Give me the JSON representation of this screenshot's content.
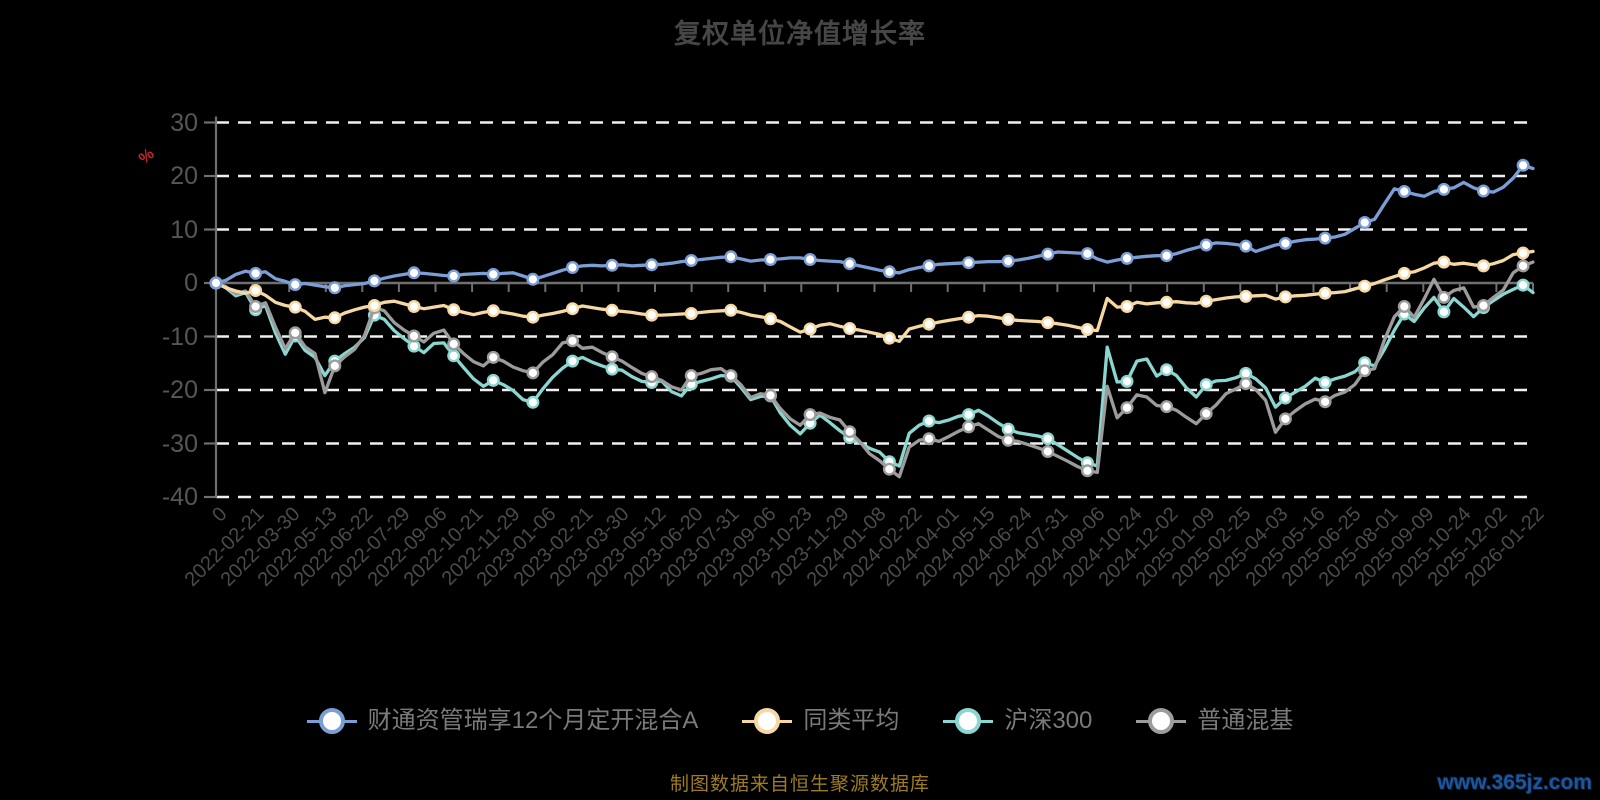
{
  "title": "复权单位净值增长率",
  "unit_label": "%",
  "source_note": "制图数据来自恒生聚源数据库",
  "watermark": "www.365jz.com",
  "colors": {
    "background": "#000000",
    "title": "#464646",
    "axis": "#6f6f6f",
    "grid": "#f0f0f0",
    "y_label": "#565656",
    "x_label": "#4b4b4b",
    "legend_text": "#7a7a7a",
    "percent": "#c3272b",
    "source": "#9d7c20",
    "watermark": "#1e5699"
  },
  "chart_data": {
    "type": "line",
    "title": "复权单位净值增长率",
    "ylabel": "%",
    "ylim": [
      -40,
      30
    ],
    "yticks": [
      30,
      20,
      10,
      0,
      -10,
      -20,
      -30,
      -40
    ],
    "grid": "dashed horizontal white lines, solid axis at 0",
    "legend_position": "bottom center",
    "marker_every": 4,
    "draw_order": [
      2,
      3,
      1,
      0
    ],
    "x_labels": [
      "0",
      "2022-02-21",
      "2022-03-30",
      "2022-05-13",
      "2022-06-22",
      "2022-07-29",
      "2022-09-06",
      "2022-10-21",
      "2022-11-29",
      "2023-01-06",
      "2023-02-21",
      "2023-03-30",
      "2023-05-12",
      "2023-06-20",
      "2023-07-31",
      "2023-09-06",
      "2023-10-23",
      "2023-11-29",
      "2024-01-08",
      "2024-02-22",
      "2024-04-01",
      "2024-05-15",
      "2024-06-24",
      "2024-07-31",
      "2024-09-06",
      "2024-10-24",
      "2024-12-02",
      "2025-01-09",
      "2025-02-25",
      "2025-04-03",
      "2025-05-16",
      "2025-06-25",
      "2025-08-01",
      "2025-09-09",
      "2025-10-24",
      "2025-12-02",
      "2026-01-22"
    ],
    "series": [
      {
        "name": "财通资管瑞享12个月定开混合A",
        "color": "#7c9ed6",
        "values": [
          0,
          0.5,
          1.6,
          2.2,
          1.8,
          2.1,
          0.8,
          0.3,
          -0.3,
          -0.1,
          -0.4,
          -0.7,
          -0.9,
          -0.5,
          -0.3,
          -0.1,
          0.4,
          0.9,
          1.3,
          1.6,
          1.9,
          1.8,
          1.6,
          1.4,
          1.3,
          1.6,
          1.7,
          1.8,
          1.6,
          1.8,
          1.9,
          1.3,
          0.7,
          1.2,
          1.8,
          2.4,
          2.9,
          3.2,
          3.3,
          3.2,
          3.3,
          3.4,
          3.2,
          3.3,
          3.4,
          3.5,
          3.7,
          4.0,
          4.2,
          4.4,
          4.6,
          4.8,
          4.9,
          4.5,
          4.1,
          4.3,
          4.4,
          4.5,
          4.7,
          4.7,
          4.4,
          4.2,
          4.1,
          4.0,
          3.6,
          3.2,
          2.8,
          2.4,
          2.1,
          1.9,
          2.5,
          2.9,
          3.2,
          3.5,
          3.6,
          3.7,
          3.8,
          3.9,
          4.0,
          4.0,
          4.1,
          4.3,
          4.6,
          5.0,
          5.4,
          5.8,
          5.7,
          5.6,
          5.5,
          4.5,
          3.9,
          4.3,
          4.6,
          4.8,
          5.0,
          5.1,
          5.1,
          5.5,
          6.1,
          6.6,
          7.1,
          7.5,
          7.4,
          7.2,
          6.9,
          5.9,
          6.5,
          7.1,
          7.4,
          7.8,
          8.1,
          8.2,
          8.4,
          8.6,
          9.1,
          10.2,
          11.3,
          11.9,
          14.8,
          17.6,
          17.1,
          16.6,
          16.2,
          17.1,
          17.5,
          17.8,
          18.8,
          17.8,
          17.2,
          17.0,
          17.9,
          19.6,
          22.0,
          21.4
        ]
      },
      {
        "name": "同类平均",
        "color": "#f6d8a2",
        "values": [
          0,
          -0.9,
          -1.5,
          -1.9,
          -1.4,
          -2.3,
          -3.6,
          -4.2,
          -4.5,
          -5.3,
          -6.8,
          -6.4,
          -6.5,
          -5.6,
          -5.0,
          -4.5,
          -4.2,
          -3.6,
          -3.4,
          -3.9,
          -4.4,
          -4.8,
          -4.5,
          -4.2,
          -5.0,
          -5.5,
          -5.9,
          -5.5,
          -5.2,
          -5.5,
          -5.8,
          -6.2,
          -6.4,
          -6.0,
          -5.7,
          -5.3,
          -4.8,
          -4.3,
          -4.6,
          -4.9,
          -5.1,
          -5.3,
          -5.5,
          -5.8,
          -6.0,
          -6.0,
          -5.9,
          -5.8,
          -5.7,
          -5.5,
          -5.3,
          -5.2,
          -5.1,
          -5.5,
          -6.0,
          -6.3,
          -6.7,
          -7.2,
          -8.2,
          -9.2,
          -8.6,
          -7.9,
          -7.6,
          -8.1,
          -8.5,
          -8.8,
          -9.2,
          -9.6,
          -10.3,
          -10.9,
          -8.6,
          -8.1,
          -7.7,
          -7.3,
          -7.0,
          -6.7,
          -6.4,
          -6.1,
          -6.2,
          -6.5,
          -6.8,
          -7.0,
          -7.1,
          -7.2,
          -7.4,
          -7.6,
          -7.9,
          -8.3,
          -8.7,
          -8.9,
          -2.9,
          -4.5,
          -4.4,
          -3.6,
          -3.9,
          -3.7,
          -3.6,
          -3.5,
          -3.7,
          -3.8,
          -3.4,
          -3.1,
          -2.8,
          -2.6,
          -2.5,
          -2.4,
          -2.3,
          -3.0,
          -2.6,
          -2.4,
          -2.3,
          -2.1,
          -1.9,
          -1.8,
          -1.6,
          -1.1,
          -0.6,
          -0.1,
          0.6,
          1.2,
          1.8,
          2.1,
          2.8,
          3.7,
          3.9,
          3.5,
          3.7,
          3.4,
          3.2,
          3.6,
          4.2,
          5.3,
          5.6,
          5.9
        ]
      },
      {
        "name": "沪深300",
        "color": "#8ad6d0",
        "values": [
          0,
          -0.9,
          -2.4,
          -1.8,
          -5.0,
          -4.2,
          -9.3,
          -13.3,
          -9.9,
          -12.6,
          -13.9,
          -17.3,
          -14.6,
          -13.2,
          -12.0,
          -10.2,
          -6.0,
          -6.8,
          -8.9,
          -10.4,
          -11.8,
          -13.0,
          -11.3,
          -11.2,
          -13.6,
          -15.8,
          -17.9,
          -19.3,
          -18.2,
          -19.0,
          -20.1,
          -21.8,
          -22.3,
          -19.8,
          -17.6,
          -15.9,
          -14.6,
          -13.9,
          -14.8,
          -15.5,
          -16.1,
          -16.3,
          -17.5,
          -18.4,
          -18.6,
          -18.3,
          -20.3,
          -21.1,
          -18.9,
          -18.4,
          -17.9,
          -17.3,
          -17.4,
          -19.5,
          -21.8,
          -21.2,
          -21.1,
          -24.3,
          -26.6,
          -28.2,
          -26.2,
          -24.7,
          -26.1,
          -27.6,
          -28.9,
          -29.8,
          -30.9,
          -31.6,
          -33.4,
          -34.2,
          -28.1,
          -26.6,
          -25.8,
          -26.1,
          -25.6,
          -24.9,
          -24.6,
          -23.8,
          -24.9,
          -26.2,
          -27.3,
          -28.0,
          -28.3,
          -28.6,
          -29.1,
          -30.2,
          -31.4,
          -32.6,
          -33.6,
          -34.2,
          -12.0,
          -18.5,
          -18.4,
          -14.6,
          -14.2,
          -17.4,
          -16.2,
          -17.3,
          -19.6,
          -21.3,
          -19.0,
          -18.3,
          -18.2,
          -17.7,
          -16.9,
          -17.9,
          -19.6,
          -23.2,
          -21.5,
          -20.4,
          -19.3,
          -17.8,
          -18.6,
          -17.9,
          -17.4,
          -16.6,
          -14.9,
          -15.5,
          -12.4,
          -8.8,
          -5.8,
          -7.2,
          -4.7,
          -2.7,
          -5.4,
          -2.9,
          -4.5,
          -6.3,
          -4.6,
          -3.3,
          -2.1,
          -1.2,
          -0.4,
          -1.8
        ]
      },
      {
        "name": "普通混基",
        "color": "#9c9c9c",
        "values": [
          0,
          -0.7,
          -2.0,
          -1.5,
          -4.4,
          -3.7,
          -8.2,
          -12.3,
          -9.3,
          -11.9,
          -13.2,
          -20.5,
          -15.5,
          -13.8,
          -12.4,
          -9.8,
          -4.6,
          -5.2,
          -7.4,
          -8.8,
          -9.9,
          -11.0,
          -9.4,
          -8.8,
          -11.4,
          -13.2,
          -14.7,
          -15.5,
          -13.9,
          -14.6,
          -15.7,
          -16.4,
          -16.8,
          -14.8,
          -13.4,
          -11.2,
          -10.8,
          -12.2,
          -12.0,
          -13.0,
          -13.8,
          -14.6,
          -15.8,
          -16.9,
          -17.5,
          -18.2,
          -19.4,
          -20.0,
          -17.3,
          -16.9,
          -16.2,
          -16.0,
          -17.3,
          -19.0,
          -21.4,
          -20.7,
          -21.0,
          -23.5,
          -25.4,
          -26.6,
          -24.6,
          -24.3,
          -25.1,
          -25.6,
          -27.8,
          -29.6,
          -31.9,
          -33.2,
          -34.8,
          -36.2,
          -30.7,
          -29.4,
          -29.1,
          -29.6,
          -28.7,
          -27.7,
          -26.9,
          -26.3,
          -27.5,
          -28.7,
          -29.4,
          -29.6,
          -30.2,
          -30.8,
          -31.5,
          -32.4,
          -33.3,
          -34.3,
          -35.1,
          -35.4,
          -19.3,
          -25.2,
          -23.3,
          -20.9,
          -21.3,
          -22.9,
          -23.1,
          -23.8,
          -25.1,
          -26.3,
          -24.4,
          -22.8,
          -20.7,
          -19.8,
          -18.8,
          -19.9,
          -21.9,
          -27.9,
          -25.4,
          -23.9,
          -22.6,
          -21.7,
          -22.2,
          -21.0,
          -20.4,
          -19.0,
          -16.4,
          -16.0,
          -10.6,
          -6.3,
          -4.4,
          -6.4,
          -3.0,
          0.7,
          -2.7,
          -1.4,
          -0.9,
          -4.5,
          -4.2,
          -2.7,
          -1.3,
          1.9,
          3.2,
          3.9
        ]
      }
    ]
  }
}
